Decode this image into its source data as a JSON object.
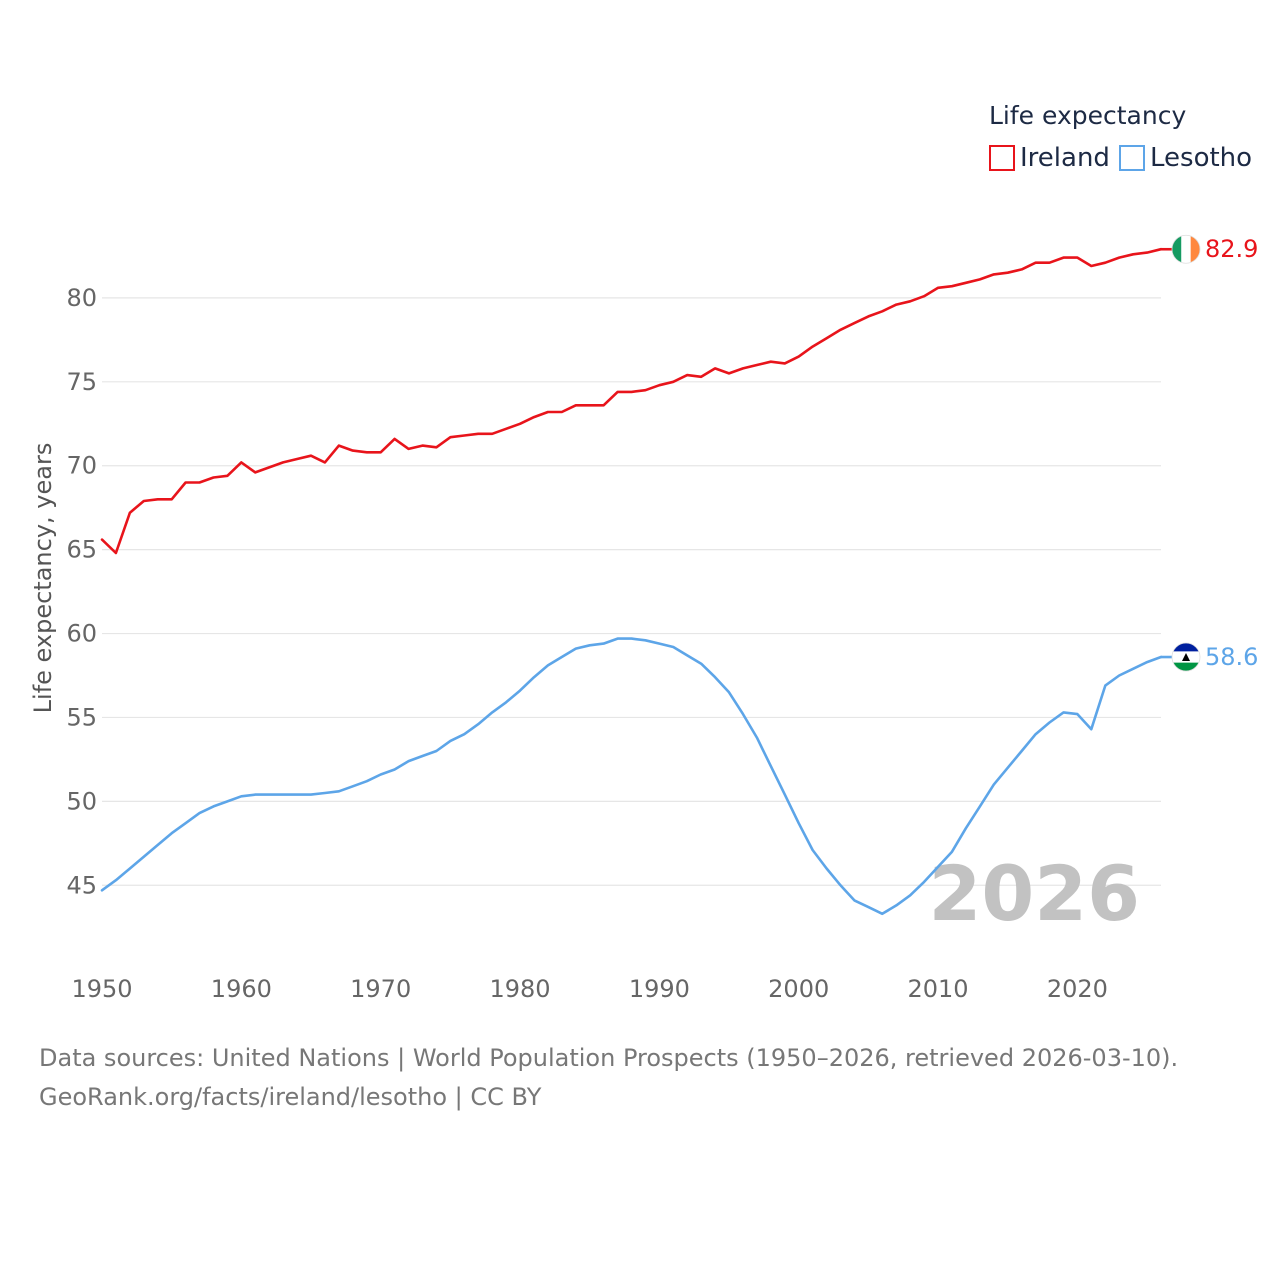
{
  "chart_data": {
    "type": "line",
    "legend_title": "Life expectancy",
    "ylabel": "Life expectancy, years",
    "xlabel": "",
    "xlim": [
      1950,
      2026
    ],
    "ylim": [
      41.5,
      85
    ],
    "yticks": [
      45,
      50,
      55,
      60,
      65,
      70,
      75,
      80
    ],
    "xticks": [
      1950,
      1960,
      1970,
      1980,
      1990,
      2000,
      2010,
      2020
    ],
    "year_label": "2026",
    "legend_position": "top-right",
    "colors": {
      "ireland": "#e8141b",
      "lesotho": "#5da5e8"
    },
    "series": [
      {
        "key": "ireland",
        "name": "Ireland",
        "end_label": "82.9",
        "flag": "ireland-flag",
        "x": [
          1950,
          1951,
          1952,
          1953,
          1954,
          1955,
          1956,
          1957,
          1958,
          1959,
          1960,
          1961,
          1962,
          1963,
          1964,
          1965,
          1966,
          1967,
          1968,
          1969,
          1970,
          1971,
          1972,
          1973,
          1974,
          1975,
          1976,
          1977,
          1978,
          1979,
          1980,
          1981,
          1982,
          1983,
          1984,
          1985,
          1986,
          1987,
          1988,
          1989,
          1990,
          1991,
          1992,
          1993,
          1994,
          1995,
          1996,
          1997,
          1998,
          1999,
          2000,
          2001,
          2002,
          2003,
          2004,
          2005,
          2006,
          2007,
          2008,
          2009,
          2010,
          2011,
          2012,
          2013,
          2014,
          2015,
          2016,
          2017,
          2018,
          2019,
          2020,
          2021,
          2022,
          2023,
          2024,
          2025,
          2026
        ],
        "values": [
          65.6,
          64.8,
          67.2,
          67.9,
          68.0,
          68.0,
          69.0,
          69.0,
          69.3,
          69.4,
          70.2,
          69.6,
          69.9,
          70.2,
          70.4,
          70.6,
          70.2,
          71.2,
          70.9,
          70.8,
          70.8,
          71.6,
          71.0,
          71.2,
          71.1,
          71.7,
          71.8,
          71.9,
          71.9,
          72.2,
          72.5,
          72.9,
          73.2,
          73.2,
          73.6,
          73.6,
          73.6,
          74.4,
          74.4,
          74.5,
          74.8,
          75.0,
          75.4,
          75.3,
          75.8,
          75.5,
          75.8,
          76.0,
          76.2,
          76.1,
          76.5,
          77.1,
          77.6,
          78.1,
          78.5,
          78.9,
          79.2,
          79.6,
          79.8,
          80.1,
          80.6,
          80.7,
          80.9,
          81.1,
          81.4,
          81.5,
          81.7,
          82.1,
          82.1,
          82.4,
          82.4,
          81.9,
          82.1,
          82.4,
          82.6,
          82.7,
          82.9
        ]
      },
      {
        "key": "lesotho",
        "name": "Lesotho",
        "end_label": "58.6",
        "flag": "lesotho-flag",
        "x": [
          1950,
          1951,
          1952,
          1953,
          1954,
          1955,
          1956,
          1957,
          1958,
          1959,
          1960,
          1961,
          1962,
          1963,
          1964,
          1965,
          1966,
          1967,
          1968,
          1969,
          1970,
          1971,
          1972,
          1973,
          1974,
          1975,
          1976,
          1977,
          1978,
          1979,
          1980,
          1981,
          1982,
          1983,
          1984,
          1985,
          1986,
          1987,
          1988,
          1989,
          1990,
          1991,
          1992,
          1993,
          1994,
          1995,
          1996,
          1997,
          1998,
          1999,
          2000,
          2001,
          2002,
          2003,
          2004,
          2005,
          2006,
          2007,
          2008,
          2009,
          2010,
          2011,
          2012,
          2013,
          2014,
          2015,
          2016,
          2017,
          2018,
          2019,
          2020,
          2021,
          2022,
          2023,
          2024,
          2025,
          2026
        ],
        "values": [
          44.7,
          45.3,
          46.0,
          46.7,
          47.4,
          48.1,
          48.7,
          49.3,
          49.7,
          50.0,
          50.3,
          50.4,
          50.4,
          50.4,
          50.4,
          50.4,
          50.5,
          50.6,
          50.9,
          51.2,
          51.6,
          51.9,
          52.4,
          52.7,
          53.0,
          53.6,
          54.0,
          54.6,
          55.3,
          55.9,
          56.6,
          57.4,
          58.1,
          58.6,
          59.1,
          59.3,
          59.4,
          59.7,
          59.7,
          59.6,
          59.4,
          59.2,
          58.7,
          58.2,
          57.4,
          56.5,
          55.2,
          53.8,
          52.1,
          50.4,
          48.7,
          47.1,
          46.0,
          45.0,
          44.1,
          43.7,
          43.3,
          43.8,
          44.4,
          45.2,
          46.1,
          47.0,
          48.4,
          49.7,
          51.0,
          52.0,
          53.0,
          54.0,
          54.7,
          55.3,
          55.2,
          54.3,
          56.9,
          57.5,
          57.9,
          58.3,
          58.6
        ]
      }
    ]
  },
  "footer": {
    "line1": "Data sources: United Nations | World Population Prospects (1950–2026, retrieved 2026-03-10).",
    "line2": "GeoRank.org/facts/ireland/lesotho | CC BY"
  }
}
